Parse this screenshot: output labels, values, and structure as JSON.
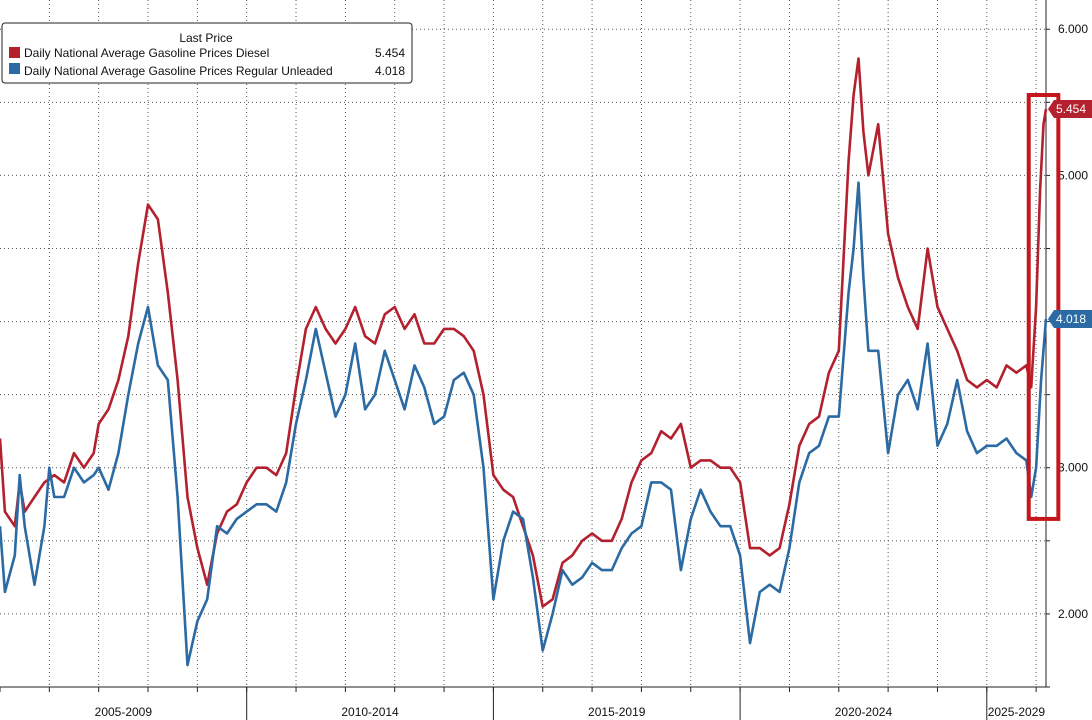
{
  "chart_data": {
    "type": "line",
    "legend": {
      "title": "Last Price",
      "entries": [
        {
          "name": "Daily National Average Gasoline Prices Diesel",
          "value": "5.454",
          "color": "#b3202e"
        },
        {
          "name": "Daily National Average Gasoline Prices Regular Unleaded",
          "value": "4.018",
          "color": "#2b6aa3"
        }
      ],
      "placement": "top-left"
    },
    "x_range": [
      2005.0,
      2026.2
    ],
    "ylim": [
      1.5,
      6.2
    ],
    "y_ticks": [
      2.0,
      3.0,
      4.0,
      5.0,
      6.0
    ],
    "y_tick_labels": [
      "2.000",
      "3.000",
      "4.000",
      "5.000",
      "6.000"
    ],
    "x_period_labels": [
      {
        "label": "2005-2009",
        "start": 2005,
        "end": 2010
      },
      {
        "label": "2010-2014",
        "start": 2010,
        "end": 2015
      },
      {
        "label": "2015-2019",
        "start": 2015,
        "end": 2020
      },
      {
        "label": "2020-2024",
        "start": 2020,
        "end": 2025
      },
      {
        "label": "2025-2029",
        "start": 2025,
        "end": 2026.7
      }
    ],
    "grid": true,
    "series": [
      {
        "name": "Daily National Average Gasoline Prices Diesel",
        "color": "#b3202e",
        "last_value": "5.454",
        "points": [
          [
            2005.0,
            3.2
          ],
          [
            2005.1,
            2.7
          ],
          [
            2005.3,
            2.6
          ],
          [
            2005.4,
            2.9
          ],
          [
            2005.5,
            2.7
          ],
          [
            2005.7,
            2.8
          ],
          [
            2005.9,
            2.9
          ],
          [
            2006.1,
            2.95
          ],
          [
            2006.3,
            2.9
          ],
          [
            2006.5,
            3.1
          ],
          [
            2006.7,
            3.0
          ],
          [
            2006.9,
            3.1
          ],
          [
            2007.0,
            3.3
          ],
          [
            2007.2,
            3.4
          ],
          [
            2007.4,
            3.6
          ],
          [
            2007.6,
            3.9
          ],
          [
            2007.8,
            4.4
          ],
          [
            2008.0,
            4.8
          ],
          [
            2008.2,
            4.7
          ],
          [
            2008.4,
            4.2
          ],
          [
            2008.6,
            3.6
          ],
          [
            2008.8,
            2.8
          ],
          [
            2009.0,
            2.45
          ],
          [
            2009.2,
            2.2
          ],
          [
            2009.4,
            2.55
          ],
          [
            2009.6,
            2.7
          ],
          [
            2009.8,
            2.75
          ],
          [
            2010.0,
            2.9
          ],
          [
            2010.2,
            3.0
          ],
          [
            2010.4,
            3.0
          ],
          [
            2010.6,
            2.95
          ],
          [
            2010.8,
            3.1
          ],
          [
            2011.0,
            3.55
          ],
          [
            2011.2,
            3.95
          ],
          [
            2011.4,
            4.1
          ],
          [
            2011.6,
            3.95
          ],
          [
            2011.8,
            3.85
          ],
          [
            2012.0,
            3.95
          ],
          [
            2012.2,
            4.1
          ],
          [
            2012.4,
            3.9
          ],
          [
            2012.6,
            3.85
          ],
          [
            2012.8,
            4.05
          ],
          [
            2013.0,
            4.1
          ],
          [
            2013.2,
            3.95
          ],
          [
            2013.4,
            4.05
          ],
          [
            2013.6,
            3.85
          ],
          [
            2013.8,
            3.85
          ],
          [
            2014.0,
            3.95
          ],
          [
            2014.2,
            3.95
          ],
          [
            2014.4,
            3.9
          ],
          [
            2014.6,
            3.8
          ],
          [
            2014.8,
            3.5
          ],
          [
            2015.0,
            2.95
          ],
          [
            2015.2,
            2.85
          ],
          [
            2015.4,
            2.8
          ],
          [
            2015.6,
            2.6
          ],
          [
            2015.8,
            2.4
          ],
          [
            2016.0,
            2.05
          ],
          [
            2016.2,
            2.1
          ],
          [
            2016.4,
            2.35
          ],
          [
            2016.6,
            2.4
          ],
          [
            2016.8,
            2.5
          ],
          [
            2017.0,
            2.55
          ],
          [
            2017.2,
            2.5
          ],
          [
            2017.4,
            2.5
          ],
          [
            2017.6,
            2.65
          ],
          [
            2017.8,
            2.9
          ],
          [
            2018.0,
            3.05
          ],
          [
            2018.2,
            3.1
          ],
          [
            2018.4,
            3.25
          ],
          [
            2018.6,
            3.2
          ],
          [
            2018.8,
            3.3
          ],
          [
            2019.0,
            3.0
          ],
          [
            2019.2,
            3.05
          ],
          [
            2019.4,
            3.05
          ],
          [
            2019.6,
            3.0
          ],
          [
            2019.8,
            3.0
          ],
          [
            2020.0,
            2.9
          ],
          [
            2020.2,
            2.45
          ],
          [
            2020.4,
            2.45
          ],
          [
            2020.6,
            2.4
          ],
          [
            2020.8,
            2.45
          ],
          [
            2021.0,
            2.75
          ],
          [
            2021.2,
            3.15
          ],
          [
            2021.4,
            3.3
          ],
          [
            2021.6,
            3.35
          ],
          [
            2021.8,
            3.65
          ],
          [
            2022.0,
            3.8
          ],
          [
            2022.2,
            5.1
          ],
          [
            2022.3,
            5.55
          ],
          [
            2022.4,
            5.8
          ],
          [
            2022.5,
            5.3
          ],
          [
            2022.6,
            5.0
          ],
          [
            2022.8,
            5.35
          ],
          [
            2023.0,
            4.6
          ],
          [
            2023.2,
            4.3
          ],
          [
            2023.4,
            4.1
          ],
          [
            2023.6,
            3.95
          ],
          [
            2023.8,
            4.5
          ],
          [
            2024.0,
            4.1
          ],
          [
            2024.2,
            3.95
          ],
          [
            2024.4,
            3.8
          ],
          [
            2024.6,
            3.6
          ],
          [
            2024.8,
            3.55
          ],
          [
            2025.0,
            3.6
          ],
          [
            2025.2,
            3.55
          ],
          [
            2025.4,
            3.7
          ],
          [
            2025.6,
            3.65
          ],
          [
            2025.8,
            3.7
          ],
          [
            2025.9,
            3.55
          ],
          [
            2026.0,
            4.1
          ],
          [
            2026.08,
            4.9
          ],
          [
            2026.15,
            5.35
          ],
          [
            2026.2,
            5.454
          ]
        ]
      },
      {
        "name": "Daily National Average Gasoline Prices Regular Unleaded",
        "color": "#2b6aa3",
        "last_value": "4.018",
        "points": [
          [
            2005.0,
            2.6
          ],
          [
            2005.1,
            2.15
          ],
          [
            2005.3,
            2.4
          ],
          [
            2005.4,
            2.95
          ],
          [
            2005.5,
            2.6
          ],
          [
            2005.7,
            2.2
          ],
          [
            2005.9,
            2.6
          ],
          [
            2006.0,
            3.0
          ],
          [
            2006.1,
            2.8
          ],
          [
            2006.3,
            2.8
          ],
          [
            2006.5,
            3.0
          ],
          [
            2006.7,
            2.9
          ],
          [
            2006.9,
            2.95
          ],
          [
            2007.0,
            3.0
          ],
          [
            2007.2,
            2.85
          ],
          [
            2007.4,
            3.1
          ],
          [
            2007.6,
            3.5
          ],
          [
            2007.8,
            3.85
          ],
          [
            2008.0,
            4.1
          ],
          [
            2008.2,
            3.7
          ],
          [
            2008.4,
            3.6
          ],
          [
            2008.6,
            2.8
          ],
          [
            2008.8,
            1.65
          ],
          [
            2009.0,
            1.95
          ],
          [
            2009.2,
            2.1
          ],
          [
            2009.4,
            2.6
          ],
          [
            2009.6,
            2.55
          ],
          [
            2009.8,
            2.65
          ],
          [
            2010.0,
            2.7
          ],
          [
            2010.2,
            2.75
          ],
          [
            2010.4,
            2.75
          ],
          [
            2010.6,
            2.7
          ],
          [
            2010.8,
            2.9
          ],
          [
            2011.0,
            3.3
          ],
          [
            2011.2,
            3.6
          ],
          [
            2011.4,
            3.95
          ],
          [
            2011.6,
            3.65
          ],
          [
            2011.8,
            3.35
          ],
          [
            2012.0,
            3.5
          ],
          [
            2012.2,
            3.85
          ],
          [
            2012.4,
            3.4
          ],
          [
            2012.6,
            3.5
          ],
          [
            2012.8,
            3.8
          ],
          [
            2013.0,
            3.6
          ],
          [
            2013.2,
            3.4
          ],
          [
            2013.4,
            3.7
          ],
          [
            2013.6,
            3.55
          ],
          [
            2013.8,
            3.3
          ],
          [
            2014.0,
            3.35
          ],
          [
            2014.2,
            3.6
          ],
          [
            2014.4,
            3.65
          ],
          [
            2014.6,
            3.5
          ],
          [
            2014.8,
            3.0
          ],
          [
            2015.0,
            2.1
          ],
          [
            2015.2,
            2.5
          ],
          [
            2015.4,
            2.7
          ],
          [
            2015.6,
            2.65
          ],
          [
            2015.8,
            2.25
          ],
          [
            2016.0,
            1.75
          ],
          [
            2016.2,
            2.0
          ],
          [
            2016.4,
            2.3
          ],
          [
            2016.6,
            2.2
          ],
          [
            2016.8,
            2.25
          ],
          [
            2017.0,
            2.35
          ],
          [
            2017.2,
            2.3
          ],
          [
            2017.4,
            2.3
          ],
          [
            2017.6,
            2.45
          ],
          [
            2017.8,
            2.55
          ],
          [
            2018.0,
            2.6
          ],
          [
            2018.2,
            2.9
          ],
          [
            2018.4,
            2.9
          ],
          [
            2018.6,
            2.85
          ],
          [
            2018.8,
            2.3
          ],
          [
            2019.0,
            2.65
          ],
          [
            2019.2,
            2.85
          ],
          [
            2019.4,
            2.7
          ],
          [
            2019.6,
            2.6
          ],
          [
            2019.8,
            2.6
          ],
          [
            2020.0,
            2.4
          ],
          [
            2020.2,
            1.8
          ],
          [
            2020.4,
            2.15
          ],
          [
            2020.6,
            2.2
          ],
          [
            2020.8,
            2.15
          ],
          [
            2021.0,
            2.45
          ],
          [
            2021.2,
            2.9
          ],
          [
            2021.4,
            3.1
          ],
          [
            2021.6,
            3.15
          ],
          [
            2021.8,
            3.35
          ],
          [
            2022.0,
            3.35
          ],
          [
            2022.2,
            4.2
          ],
          [
            2022.3,
            4.5
          ],
          [
            2022.4,
            4.95
          ],
          [
            2022.5,
            4.3
          ],
          [
            2022.6,
            3.8
          ],
          [
            2022.8,
            3.8
          ],
          [
            2023.0,
            3.1
          ],
          [
            2023.2,
            3.5
          ],
          [
            2023.4,
            3.6
          ],
          [
            2023.6,
            3.4
          ],
          [
            2023.8,
            3.85
          ],
          [
            2024.0,
            3.15
          ],
          [
            2024.2,
            3.3
          ],
          [
            2024.4,
            3.6
          ],
          [
            2024.6,
            3.25
          ],
          [
            2024.8,
            3.1
          ],
          [
            2025.0,
            3.15
          ],
          [
            2025.2,
            3.15
          ],
          [
            2025.4,
            3.2
          ],
          [
            2025.6,
            3.1
          ],
          [
            2025.8,
            3.05
          ],
          [
            2025.9,
            2.8
          ],
          [
            2026.0,
            3.0
          ],
          [
            2026.1,
            3.6
          ],
          [
            2026.2,
            4.018
          ]
        ]
      }
    ],
    "annotations": [
      {
        "type": "highlight-box",
        "color": "#c4161c",
        "x_start": 2025.85,
        "x_end": 2026.45,
        "y_bottom": 2.65,
        "y_top": 5.55
      }
    ]
  }
}
